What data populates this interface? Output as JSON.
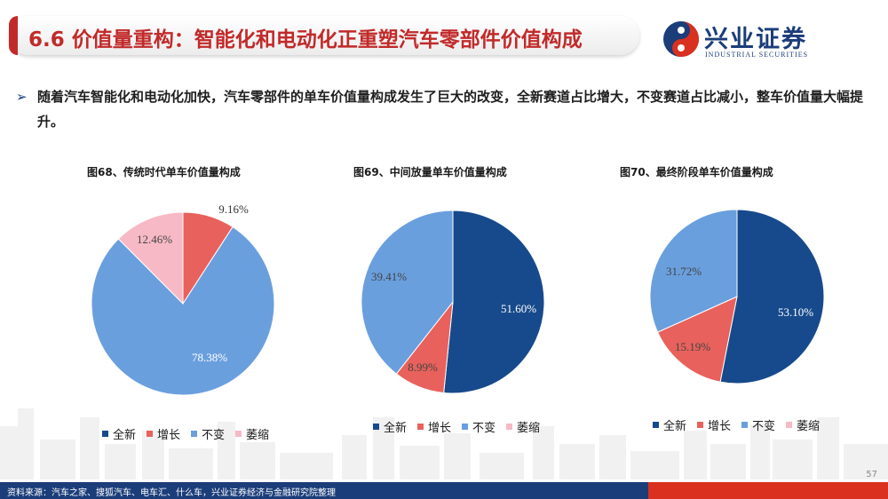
{
  "header": {
    "title": "6.6 价值量重构：智能化和电动化正重塑汽车零部件价值构成",
    "logo_cn": "兴业证券",
    "logo_en": "INDUSTRIAL SECURITIES",
    "logo_icon": "industrial-securities-logo-icon"
  },
  "bullet": {
    "marker": "➢",
    "text": "随着汽车智能化和电动化加快，汽车零部件的单车价值量构成发生了巨大的改变，全新赛道占比增大，不变赛道占比减小，整车价值量大幅提升。"
  },
  "colors": {
    "全新": "#174a8c",
    "增长": "#e8615c",
    "不变": "#6a9fde",
    "萎缩": "#f7b9c6"
  },
  "legend_labels": [
    "全新",
    "增长",
    "不变",
    "萎缩"
  ],
  "chart_data": [
    {
      "type": "pie",
      "title": "图68、传统时代单车价值量构成",
      "slices": [
        {
          "name": "增长",
          "value": 9.16,
          "label": "9.16%"
        },
        {
          "name": "不变",
          "value": 78.38,
          "label": "78.38%"
        },
        {
          "name": "萎缩",
          "value": 12.46,
          "label": "12.46%"
        }
      ],
      "legend": [
        "全新",
        "增长",
        "不变",
        "萎缩"
      ],
      "legend_position": "bottom"
    },
    {
      "type": "pie",
      "title": "图69、中间放量单车价值量构成",
      "slices": [
        {
          "name": "全新",
          "value": 51.6,
          "label": "51.60%"
        },
        {
          "name": "增长",
          "value": 8.99,
          "label": "8.99%"
        },
        {
          "name": "不变",
          "value": 39.41,
          "label": "39.41%"
        }
      ],
      "legend": [
        "全新",
        "增长",
        "不变",
        "萎缩"
      ],
      "legend_position": "bottom"
    },
    {
      "type": "pie",
      "title": "图70、最终阶段单车价值量构成",
      "slices": [
        {
          "name": "全新",
          "value": 53.1,
          "label": "53.10%"
        },
        {
          "name": "增长",
          "value": 15.19,
          "label": "15.19%"
        },
        {
          "name": "不变",
          "value": 31.72,
          "label": "31.72%"
        }
      ],
      "legend": [
        "全新",
        "增长",
        "不变",
        "萎缩"
      ],
      "legend_position": "bottom"
    }
  ],
  "footer": {
    "source": "资料来源：汽车之家、搜狐汽车、电车汇、什么车，兴业证券经济与金融研究院整理",
    "page": "57"
  }
}
